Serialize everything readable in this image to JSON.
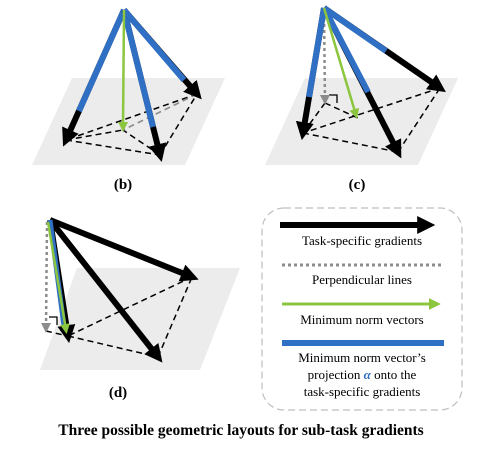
{
  "panels": [
    {
      "label": "(b)"
    },
    {
      "label": "(c)"
    },
    {
      "label": "(d)"
    }
  ],
  "legend": {
    "task_gradients": "Task-specific gradients",
    "perpendicular": "Perpendicular lines",
    "min_norm": "Minimum norm vectors",
    "projection_line1": "Minimum norm vector’s",
    "projection_line2_pre": "projection ",
    "projection_alpha": "α",
    "projection_line2_post": " onto the",
    "projection_line3": "task-specific gradients"
  },
  "caption": "Three possible geometric layouts for sub-task gradients",
  "colors": {
    "gradient": "#000000",
    "perpendicular": "#8c8c8c",
    "min_norm": "#8cc63f",
    "projection": "#2f6fc4",
    "plane": "#ececec"
  }
}
